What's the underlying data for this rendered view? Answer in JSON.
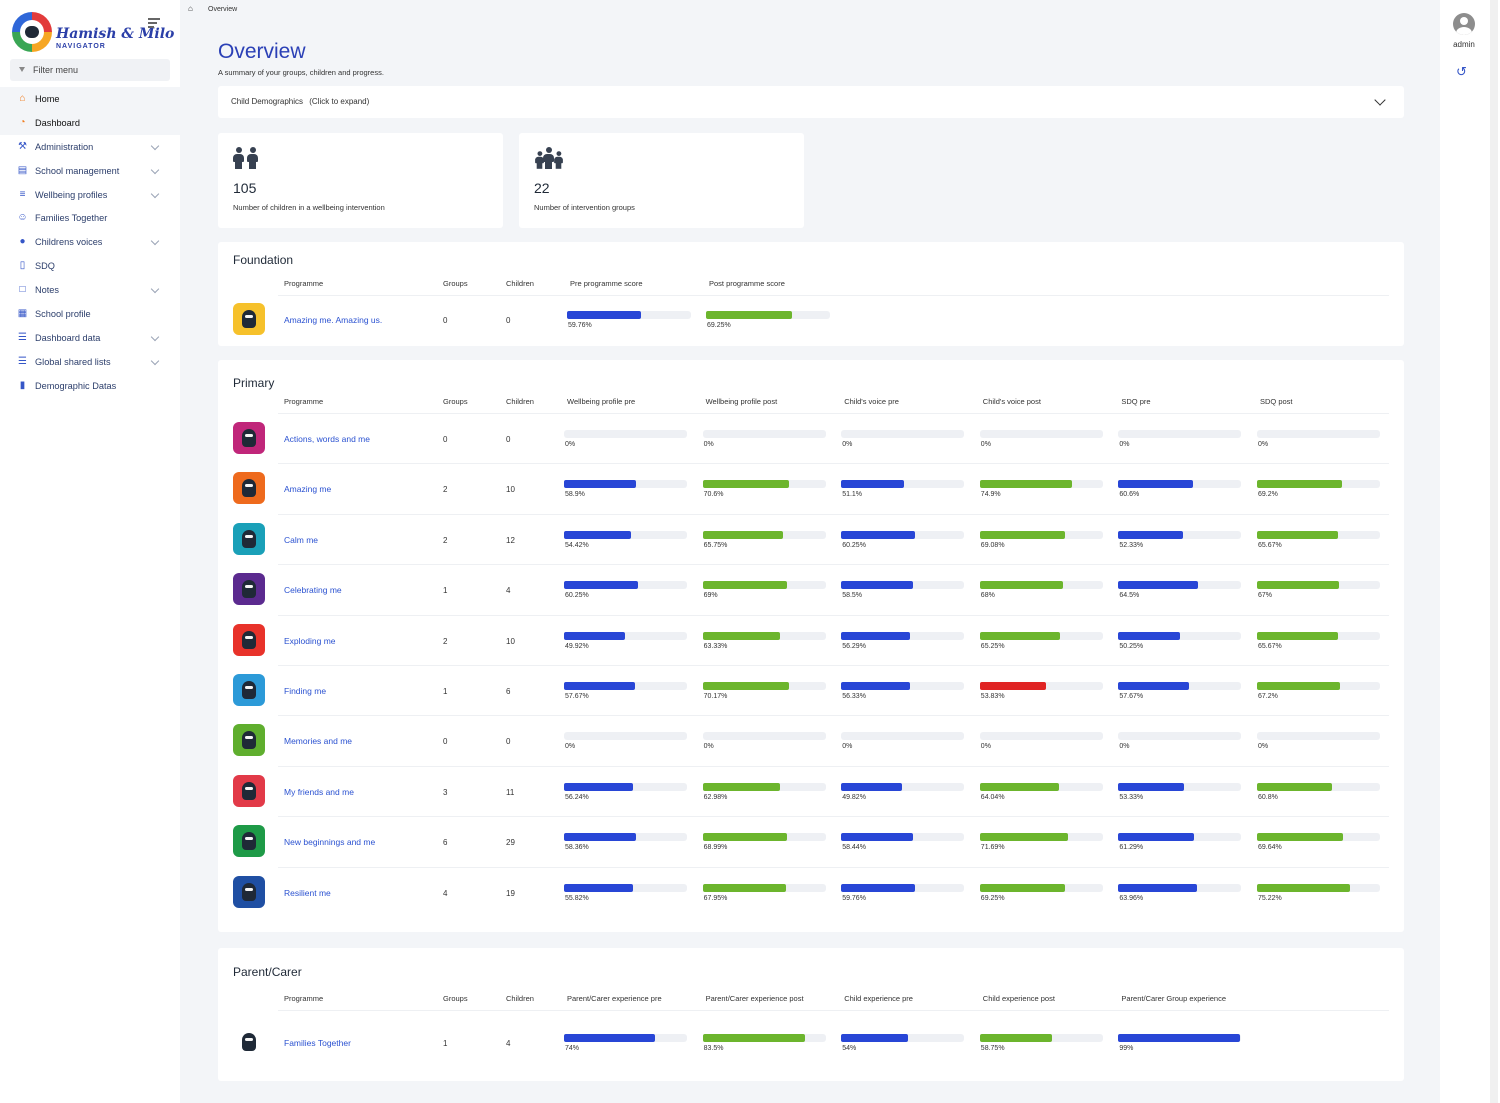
{
  "brand": {
    "title": "Hamish & Milo",
    "subtitle": "NAVIGATOR"
  },
  "sidebar": {
    "filter_label": "Filter menu",
    "items": [
      {
        "label": "Home",
        "icon": "home-icon",
        "active": true,
        "expandable": false
      },
      {
        "label": "Dashboard",
        "icon": "pie-chart-icon",
        "active": true,
        "expandable": false
      },
      {
        "label": "Administration",
        "icon": "wrench-icon",
        "active": false,
        "expandable": true
      },
      {
        "label": "School management",
        "icon": "school-icon",
        "active": false,
        "expandable": true
      },
      {
        "label": "Wellbeing profiles",
        "icon": "sliders-icon",
        "active": false,
        "expandable": true
      },
      {
        "label": "Families Together",
        "icon": "family-icon",
        "active": false,
        "expandable": false
      },
      {
        "label": "Childrens voices",
        "icon": "speech-bubble-icon",
        "active": false,
        "expandable": true
      },
      {
        "label": "SDQ",
        "icon": "document-icon",
        "active": false,
        "expandable": false
      },
      {
        "label": "Notes",
        "icon": "note-icon",
        "active": false,
        "expandable": true
      },
      {
        "label": "School profile",
        "icon": "building-icon",
        "active": false,
        "expandable": false
      },
      {
        "label": "Dashboard data",
        "icon": "table-icon",
        "active": false,
        "expandable": true
      },
      {
        "label": "Global shared lists",
        "icon": "list-icon",
        "active": false,
        "expandable": true
      },
      {
        "label": "Demographic Datas",
        "icon": "file-icon",
        "active": false,
        "expandable": false
      }
    ]
  },
  "topbar": {
    "user": "admin"
  },
  "breadcrumb": {
    "current": "Overview"
  },
  "page": {
    "title": "Overview",
    "subtitle": "A summary of your groups, children and progress.",
    "accordion_label": "Child Demographics",
    "accordion_hint": "(Click to expand)"
  },
  "stats": [
    {
      "value": "105",
      "label": "Number of children in a wellbeing intervention",
      "icon": "children-icon"
    },
    {
      "value": "22",
      "label": "Number of intervention groups",
      "icon": "group-icon"
    }
  ],
  "colors": {
    "blue": "#2846d6",
    "green": "#6cb52d",
    "red": "#e02424",
    "track": "#eef0f4",
    "link": "#2b52d1"
  },
  "foundation": {
    "title": "Foundation",
    "headers": [
      "Programme",
      "Groups",
      "Children",
      "Pre programme score",
      "Post programme score"
    ],
    "rows": [
      {
        "name": "Amazing me. Amazing us.",
        "groups": "0",
        "children": "0",
        "img": "#f6c12b",
        "bars": [
          {
            "value": 59.76,
            "label": "59.76%",
            "color": "blue"
          },
          {
            "value": 69.25,
            "label": "69.25%",
            "color": "green"
          }
        ]
      }
    ]
  },
  "primary": {
    "title": "Primary",
    "headers": [
      "Programme",
      "Groups",
      "Children",
      "Wellbeing profile pre",
      "Wellbeing profile post",
      "Child's voice pre",
      "Child's voice post",
      "SDQ pre",
      "SDQ post"
    ],
    "rows": [
      {
        "name": "Actions, words and me",
        "groups": "0",
        "children": "0",
        "img": "#c0267a",
        "bars": [
          {
            "value": 0,
            "label": "0%",
            "color": "blue"
          },
          {
            "value": 0,
            "label": "0%",
            "color": "green"
          },
          {
            "value": 0,
            "label": "0%",
            "color": "blue"
          },
          {
            "value": 0,
            "label": "0%",
            "color": "green"
          },
          {
            "value": 0,
            "label": "0%",
            "color": "blue"
          },
          {
            "value": 0,
            "label": "0%",
            "color": "green"
          }
        ]
      },
      {
        "name": "Amazing me",
        "groups": "2",
        "children": "10",
        "img": "#ee6a1d",
        "bars": [
          {
            "value": 58.9,
            "label": "58.9%",
            "color": "blue"
          },
          {
            "value": 70.6,
            "label": "70.6%",
            "color": "green"
          },
          {
            "value": 51.1,
            "label": "51.1%",
            "color": "blue"
          },
          {
            "value": 74.9,
            "label": "74.9%",
            "color": "green"
          },
          {
            "value": 60.6,
            "label": "60.6%",
            "color": "blue"
          },
          {
            "value": 69.2,
            "label": "69.2%",
            "color": "green"
          }
        ]
      },
      {
        "name": "Calm me",
        "groups": "2",
        "children": "12",
        "img": "#1aa0b8",
        "bars": [
          {
            "value": 54.42,
            "label": "54.42%",
            "color": "blue"
          },
          {
            "value": 65.75,
            "label": "65.75%",
            "color": "green"
          },
          {
            "value": 60.25,
            "label": "60.25%",
            "color": "blue"
          },
          {
            "value": 69.08,
            "label": "69.08%",
            "color": "green"
          },
          {
            "value": 52.33,
            "label": "52.33%",
            "color": "blue"
          },
          {
            "value": 65.67,
            "label": "65.67%",
            "color": "green"
          }
        ]
      },
      {
        "name": "Celebrating me",
        "groups": "1",
        "children": "4",
        "img": "#5b2a8f",
        "bars": [
          {
            "value": 60.25,
            "label": "60.25%",
            "color": "blue"
          },
          {
            "value": 69,
            "label": "69%",
            "color": "green"
          },
          {
            "value": 58.5,
            "label": "58.5%",
            "color": "blue"
          },
          {
            "value": 68,
            "label": "68%",
            "color": "green"
          },
          {
            "value": 64.5,
            "label": "64.5%",
            "color": "blue"
          },
          {
            "value": 67,
            "label": "67%",
            "color": "green"
          }
        ]
      },
      {
        "name": "Exploding me",
        "groups": "2",
        "children": "10",
        "img": "#e8322a",
        "bars": [
          {
            "value": 49.92,
            "label": "49.92%",
            "color": "blue"
          },
          {
            "value": 63.33,
            "label": "63.33%",
            "color": "green"
          },
          {
            "value": 56.29,
            "label": "56.29%",
            "color": "blue"
          },
          {
            "value": 65.25,
            "label": "65.25%",
            "color": "green"
          },
          {
            "value": 50.25,
            "label": "50.25%",
            "color": "blue"
          },
          {
            "value": 65.67,
            "label": "65.67%",
            "color": "green"
          }
        ]
      },
      {
        "name": "Finding me",
        "groups": "1",
        "children": "6",
        "img": "#2c9ad8",
        "bars": [
          {
            "value": 57.67,
            "label": "57.67%",
            "color": "blue"
          },
          {
            "value": 70.17,
            "label": "70.17%",
            "color": "green"
          },
          {
            "value": 56.33,
            "label": "56.33%",
            "color": "blue"
          },
          {
            "value": 53.83,
            "label": "53.83%",
            "color": "red"
          },
          {
            "value": 57.67,
            "label": "57.67%",
            "color": "blue"
          },
          {
            "value": 67.2,
            "label": "67.2%",
            "color": "green"
          }
        ]
      },
      {
        "name": "Memories and me",
        "groups": "0",
        "children": "0",
        "img": "#5fae2e",
        "bars": [
          {
            "value": 0,
            "label": "0%",
            "color": "blue"
          },
          {
            "value": 0,
            "label": "0%",
            "color": "green"
          },
          {
            "value": 0,
            "label": "0%",
            "color": "blue"
          },
          {
            "value": 0,
            "label": "0%",
            "color": "green"
          },
          {
            "value": 0,
            "label": "0%",
            "color": "blue"
          },
          {
            "value": 0,
            "label": "0%",
            "color": "green"
          }
        ]
      },
      {
        "name": "My friends and me",
        "groups": "3",
        "children": "11",
        "img": "#e23a48",
        "bars": [
          {
            "value": 56.24,
            "label": "56.24%",
            "color": "blue"
          },
          {
            "value": 62.98,
            "label": "62.98%",
            "color": "green"
          },
          {
            "value": 49.82,
            "label": "49.82%",
            "color": "blue"
          },
          {
            "value": 64.04,
            "label": "64.04%",
            "color": "green"
          },
          {
            "value": 53.33,
            "label": "53.33%",
            "color": "blue"
          },
          {
            "value": 60.8,
            "label": "60.8%",
            "color": "green"
          }
        ]
      },
      {
        "name": "New beginnings and me",
        "groups": "6",
        "children": "29",
        "img": "#1e9a47",
        "bars": [
          {
            "value": 58.36,
            "label": "58.36%",
            "color": "blue"
          },
          {
            "value": 68.99,
            "label": "68.99%",
            "color": "green"
          },
          {
            "value": 58.44,
            "label": "58.44%",
            "color": "blue"
          },
          {
            "value": 71.69,
            "label": "71.69%",
            "color": "green"
          },
          {
            "value": 61.29,
            "label": "61.29%",
            "color": "blue"
          },
          {
            "value": 69.64,
            "label": "69.64%",
            "color": "green"
          }
        ]
      },
      {
        "name": "Resilient me",
        "groups": "4",
        "children": "19",
        "img": "#1f4fa3",
        "bars": [
          {
            "value": 55.82,
            "label": "55.82%",
            "color": "blue"
          },
          {
            "value": 67.95,
            "label": "67.95%",
            "color": "green"
          },
          {
            "value": 59.76,
            "label": "59.76%",
            "color": "blue"
          },
          {
            "value": 69.25,
            "label": "69.25%",
            "color": "green"
          },
          {
            "value": 63.96,
            "label": "63.96%",
            "color": "blue"
          },
          {
            "value": 75.22,
            "label": "75.22%",
            "color": "green"
          }
        ]
      }
    ]
  },
  "parent": {
    "title": "Parent/Carer",
    "headers": [
      "Programme",
      "Groups",
      "Children",
      "Parent/Carer experience pre",
      "Parent/Carer experience post",
      "Child experience pre",
      "Child experience post",
      "Parent/Carer Group experience"
    ],
    "rows": [
      {
        "name": "Families Together",
        "groups": "1",
        "children": "4",
        "img": "#ffffff",
        "bars": [
          {
            "value": 74,
            "label": "74%",
            "color": "blue"
          },
          {
            "value": 83.5,
            "label": "83.5%",
            "color": "green"
          },
          {
            "value": 54,
            "label": "54%",
            "color": "blue"
          },
          {
            "value": 58.75,
            "label": "58.75%",
            "color": "green"
          },
          {
            "value": 99,
            "label": "99%",
            "color": "blue"
          }
        ]
      }
    ]
  }
}
